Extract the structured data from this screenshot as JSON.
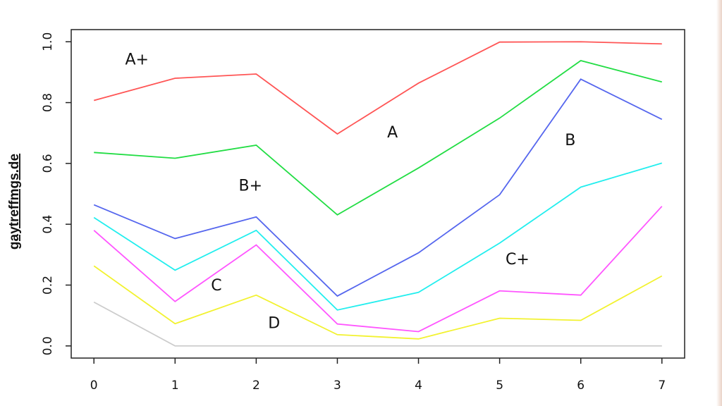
{
  "watermark": "gaytreffmgs.de",
  "chart_data": {
    "type": "line",
    "title": "",
    "xlabel": "",
    "ylabel": "",
    "x": [
      0,
      1,
      2,
      3,
      4,
      5,
      6,
      7
    ],
    "xlim": [
      -0.28,
      7.28
    ],
    "ylim": [
      -0.04,
      1.04
    ],
    "xticks": [
      "0",
      "1",
      "2",
      "3",
      "4",
      "5",
      "6",
      "7"
    ],
    "yticks": [
      "0.0",
      "0.2",
      "0.4",
      "0.6",
      "0.8",
      "1.0"
    ],
    "grid": false,
    "legend": "none",
    "series": [
      {
        "color": "#ff5555",
        "values": [
          0.807,
          0.88,
          0.894,
          0.697,
          0.864,
          0.999,
          1.0,
          0.993
        ]
      },
      {
        "color": "#22dd44",
        "values": [
          0.636,
          0.617,
          0.66,
          0.431,
          0.585,
          0.749,
          0.938,
          0.868
        ]
      },
      {
        "color": "#5566ee",
        "values": [
          0.464,
          0.353,
          0.424,
          0.164,
          0.306,
          0.497,
          0.877,
          0.745
        ]
      },
      {
        "color": "#22eeee",
        "values": [
          0.422,
          0.249,
          0.38,
          0.118,
          0.176,
          0.338,
          0.522,
          0.601
        ]
      },
      {
        "color": "#ff55ff",
        "values": [
          0.38,
          0.146,
          0.332,
          0.072,
          0.047,
          0.181,
          0.167,
          0.459
        ]
      },
      {
        "color": "#f2f230",
        "values": [
          0.263,
          0.073,
          0.167,
          0.037,
          0.023,
          0.091,
          0.084,
          0.23
        ]
      },
      {
        "color": "#cccccc",
        "values": [
          0.144,
          0.0,
          0.0,
          0.0,
          0.0,
          0.0,
          0.0,
          0.0
        ]
      }
    ],
    "annotations": [
      {
        "text": "A+",
        "x": 0.53,
        "y": 0.925
      },
      {
        "text": "A",
        "x": 3.68,
        "y": 0.685
      },
      {
        "text": "B",
        "x": 5.87,
        "y": 0.66
      },
      {
        "text": "B+",
        "x": 1.93,
        "y": 0.51
      },
      {
        "text": "C+",
        "x": 5.22,
        "y": 0.268
      },
      {
        "text": "C",
        "x": 1.51,
        "y": 0.183
      },
      {
        "text": "D",
        "x": 2.22,
        "y": 0.058
      }
    ]
  }
}
